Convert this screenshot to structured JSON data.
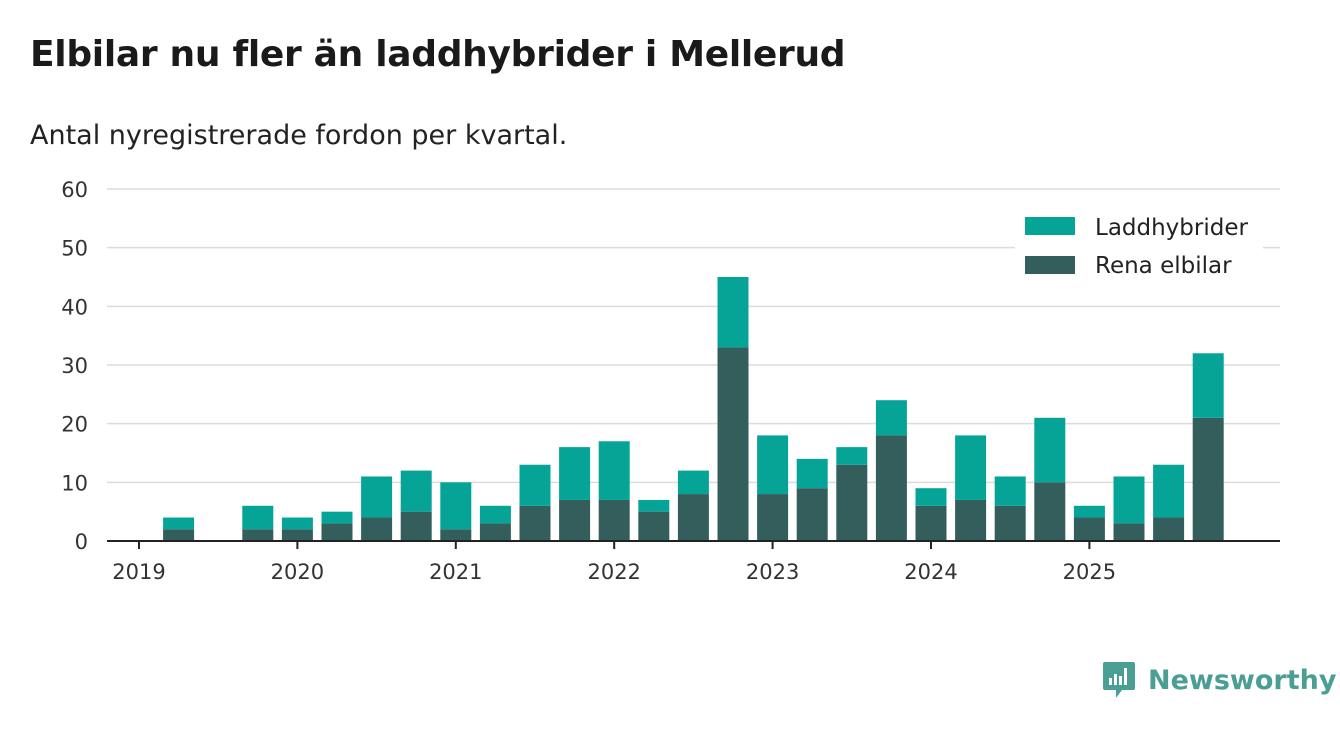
{
  "title": "Elbilar nu fler än laddhybrider i Mellerud",
  "subtitle": "Antal nyregistrerade fordon per kvartal.",
  "brand": "Newsworthy",
  "chart_data": {
    "type": "bar",
    "stacked": true,
    "title": "Elbilar nu fler än laddhybrider i Mellerud",
    "subtitle": "Antal nyregistrerade fordon per kvartal.",
    "xlabel": "",
    "ylabel": "",
    "ylim": [
      0,
      60
    ],
    "yticks": [
      0,
      10,
      20,
      30,
      40,
      50,
      60
    ],
    "xtick_labels": [
      "2019",
      "2020",
      "2021",
      "2022",
      "2023",
      "2024",
      "2025"
    ],
    "legend_position": "top-right",
    "categories": [
      "2019 Q1",
      "2019 Q2",
      "2019 Q3",
      "2019 Q4",
      "2020 Q1",
      "2020 Q2",
      "2020 Q3",
      "2020 Q4",
      "2021 Q1",
      "2021 Q2",
      "2021 Q3",
      "2021 Q4",
      "2022 Q1",
      "2022 Q2",
      "2022 Q3",
      "2022 Q4",
      "2023 Q1",
      "2023 Q2",
      "2023 Q3",
      "2023 Q4",
      "2024 Q1",
      "2024 Q2",
      "2024 Q3",
      "2024 Q4",
      "2025 Q1",
      "2025 Q2",
      "2025 Q3",
      "2025 Q4"
    ],
    "series": [
      {
        "name": "Rena elbilar",
        "color": "#345e5b",
        "values": [
          0,
          2,
          0,
          2,
          2,
          3,
          4,
          5,
          2,
          3,
          6,
          7,
          7,
          5,
          8,
          33,
          8,
          9,
          13,
          18,
          6,
          7,
          6,
          10,
          4,
          3,
          4,
          21
        ]
      },
      {
        "name": "Laddhybrider",
        "color": "#06a497",
        "values": [
          0,
          2,
          0,
          4,
          2,
          2,
          7,
          7,
          8,
          3,
          7,
          9,
          10,
          2,
          4,
          12,
          10,
          5,
          3,
          6,
          3,
          11,
          5,
          11,
          2,
          8,
          9,
          11
        ]
      }
    ],
    "legend": [
      "Laddhybrider",
      "Rena elbilar"
    ],
    "gridlines": true
  }
}
